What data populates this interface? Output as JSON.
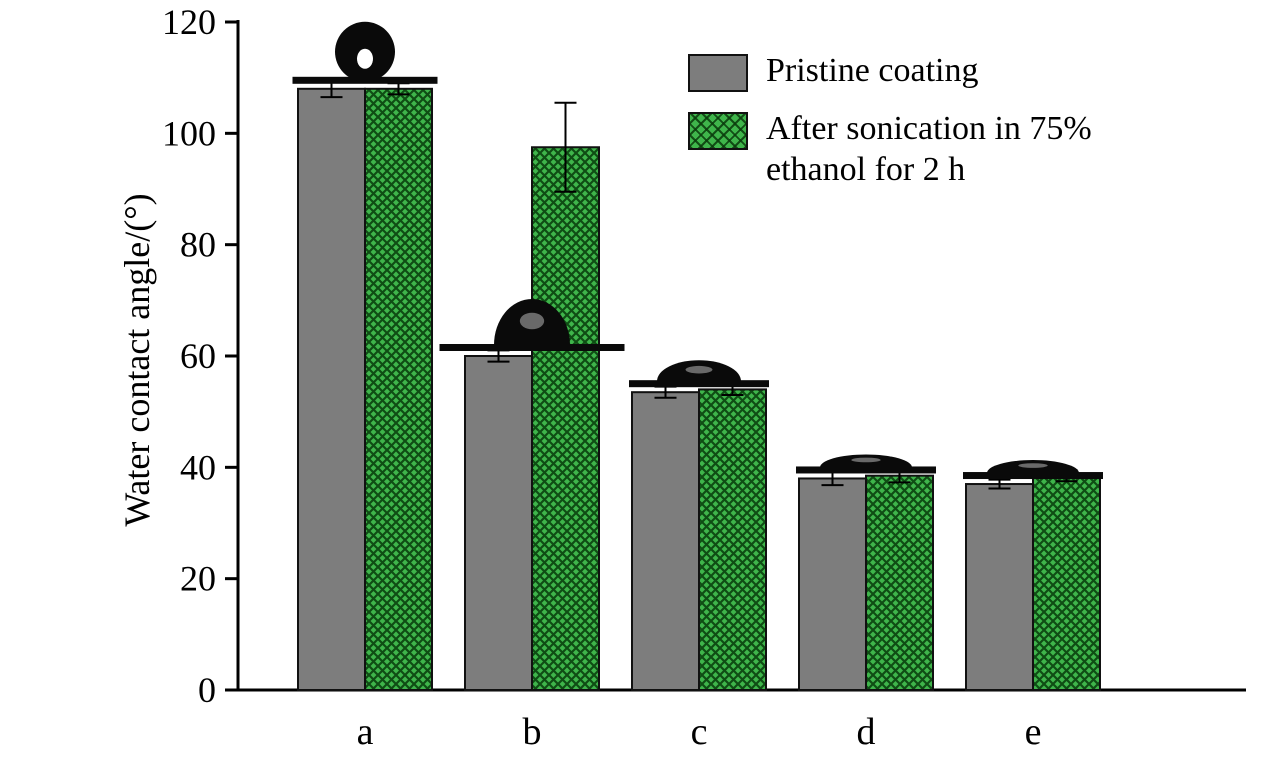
{
  "chart_data": {
    "type": "bar",
    "title": "",
    "ylabel": "Water contact angle/(°)",
    "xlabel": "",
    "categories": [
      "a",
      "b",
      "c",
      "d",
      "e"
    ],
    "series": [
      {
        "name": "Pristine coating",
        "key": "pristine",
        "color": "#7d7d7d",
        "values": [
          108,
          60,
          53.5,
          38,
          37
        ],
        "errors": [
          1.5,
          1,
          1,
          1.2,
          0.8
        ]
      },
      {
        "name": "After sonication in 75% ethanol for 2 h",
        "key": "sonication",
        "color": "#3fb54b",
        "pattern": "crosshatch",
        "hatch_color": "#0f4d14",
        "values": [
          108,
          97.5,
          54,
          38.5,
          38.5
        ],
        "errors": [
          1,
          8,
          1,
          1.2,
          1
        ]
      }
    ],
    "ylim": [
      0,
      120
    ],
    "yticks": [
      0,
      20,
      40,
      60,
      80,
      100,
      120
    ],
    "grid": false,
    "legend_position": "top-right",
    "axis_color": "#000000",
    "annotations": [
      {
        "type": "droplet-photo",
        "category": "a",
        "profile": "near-spherical"
      },
      {
        "type": "droplet-photo",
        "category": "b",
        "profile": "hemispherical-dome"
      },
      {
        "type": "droplet-photo",
        "category": "c",
        "profile": "low-dome"
      },
      {
        "type": "droplet-photo",
        "category": "d",
        "profile": "flat-dome"
      },
      {
        "type": "droplet-photo",
        "category": "e",
        "profile": "flat-dome"
      }
    ]
  }
}
